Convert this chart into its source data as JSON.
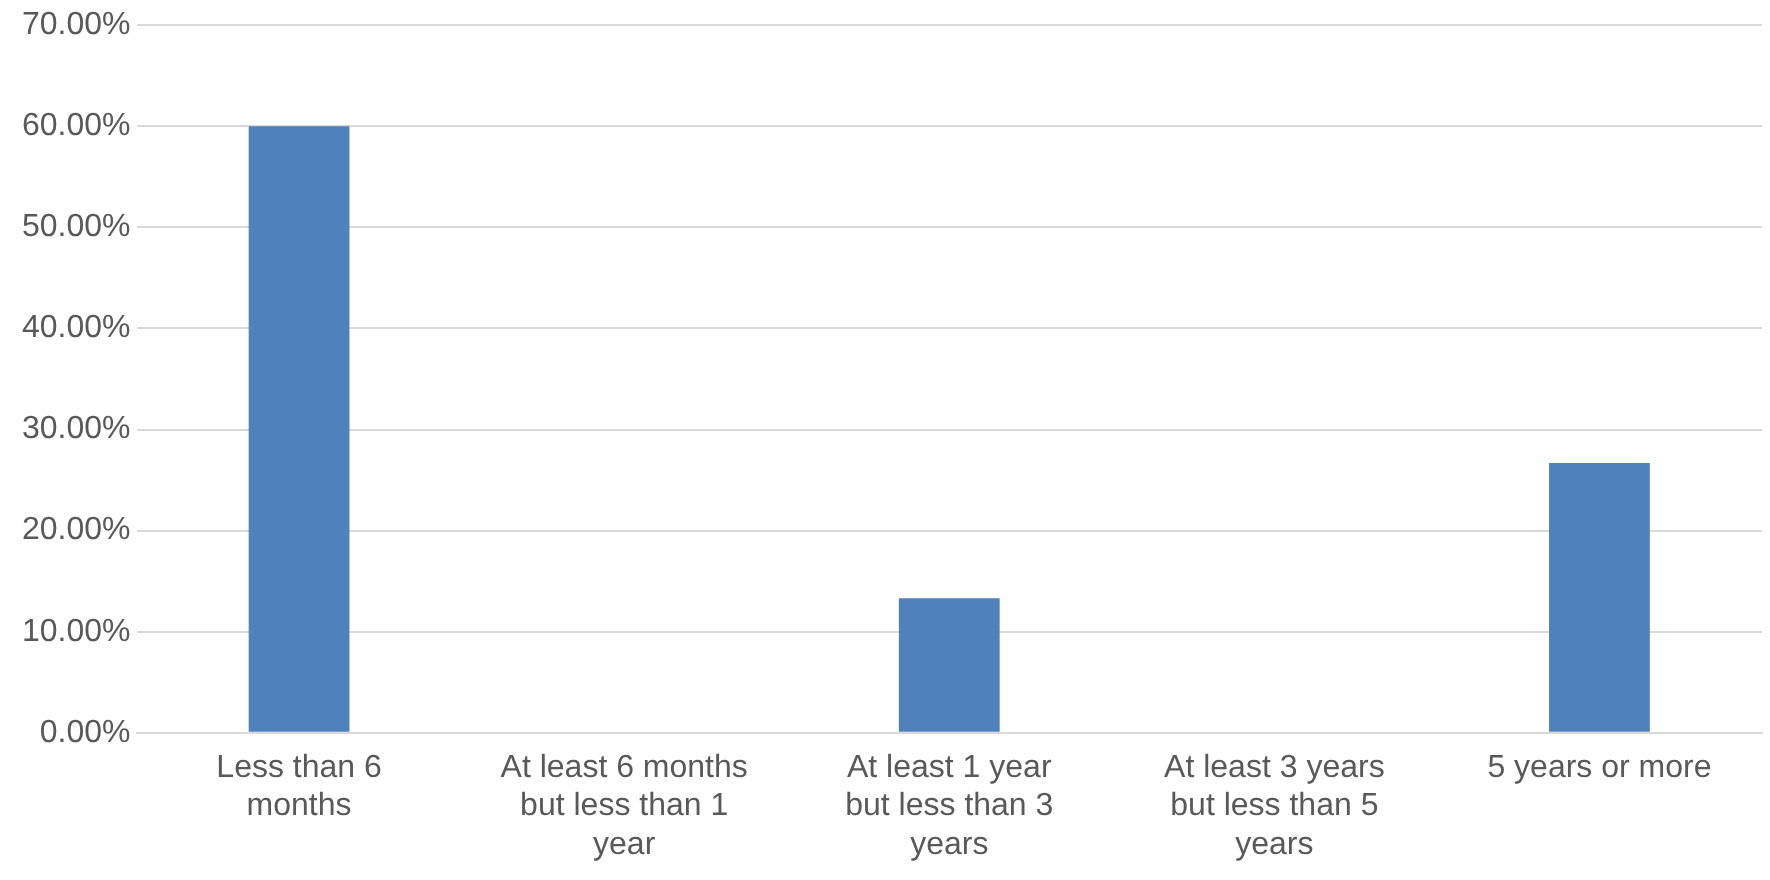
{
  "chart_data": {
    "type": "bar",
    "categories": [
      "Less than 6 months",
      "At least 6 months but less than 1 year",
      "At least 1 year but less than 3 years",
      "At least 3 years but less than 5 years",
      "5 years or more"
    ],
    "values": [
      60,
      0,
      13.3,
      0,
      26.7
    ],
    "color": "#4f81bd",
    "ylim": [
      0,
      70
    ],
    "yticks": [
      {
        "value": 0,
        "label": "0.00%"
      },
      {
        "value": 10,
        "label": "10.00%"
      },
      {
        "value": 20,
        "label": "20.00%"
      },
      {
        "value": 30,
        "label": "30.00%"
      },
      {
        "value": 40,
        "label": "40.00%"
      },
      {
        "value": 50,
        "label": "50.00%"
      },
      {
        "value": 60,
        "label": "60.00%"
      },
      {
        "value": 70,
        "label": "70.00%"
      }
    ],
    "grid": "y",
    "legend": false
  }
}
